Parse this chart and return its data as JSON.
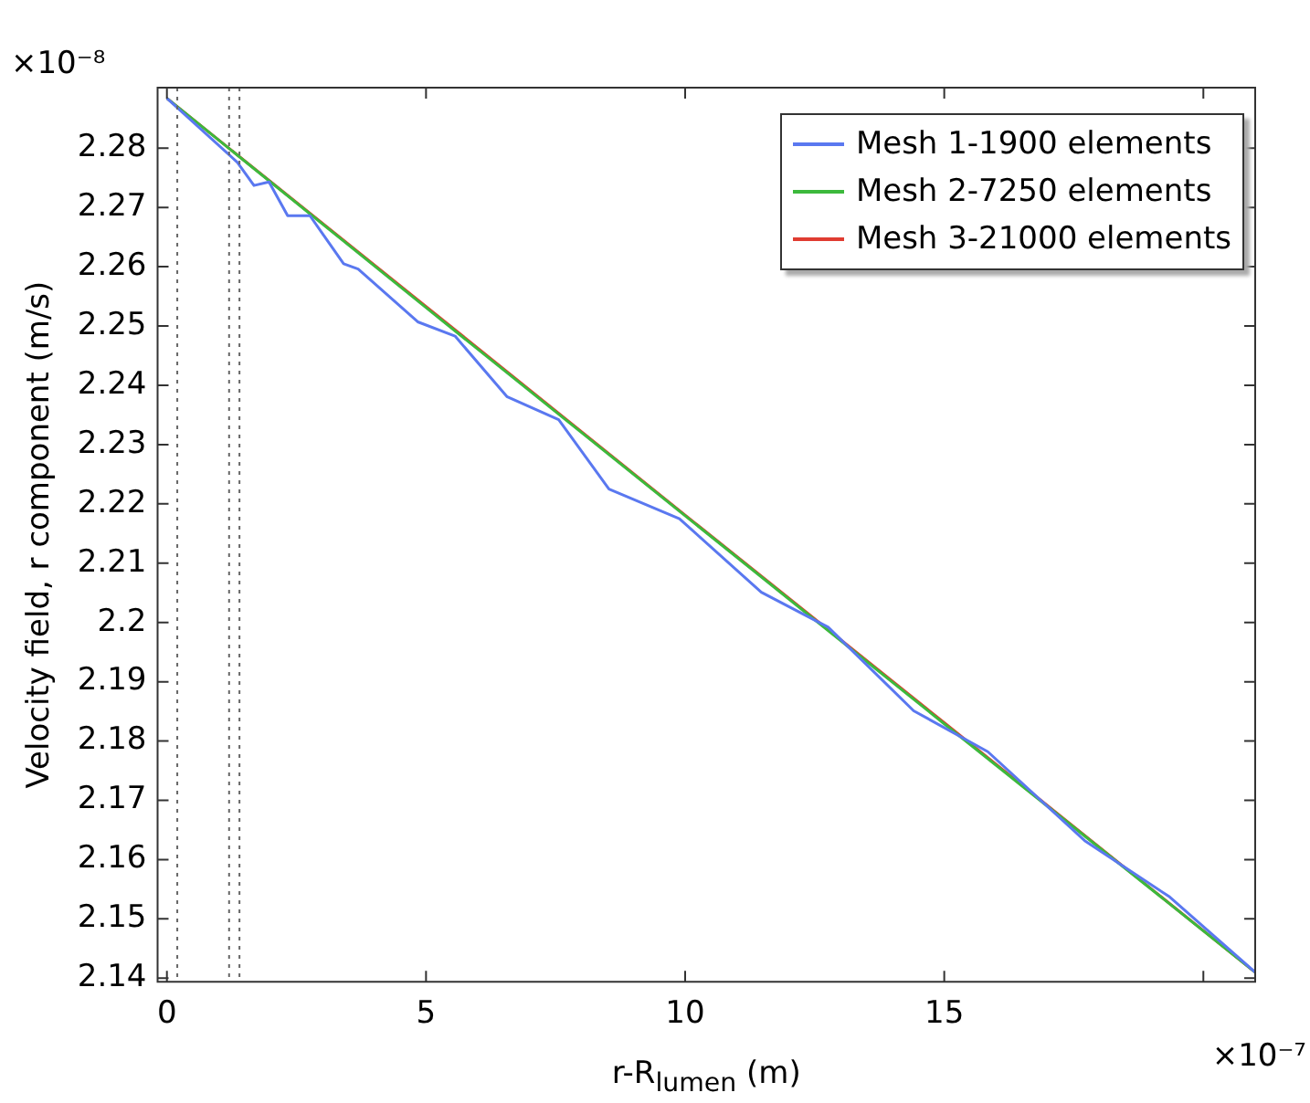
{
  "chart_data": {
    "type": "line",
    "xlabel": "r-R$_{lumen}$ (m)",
    "ylabel": "Velocity field, r component (m/s)",
    "annotations": [
      "×10⁻⁸",
      "×10⁻⁷"
    ],
    "xlim": [
      -0.18,
      21
    ],
    "xticks": [
      0,
      5,
      10,
      15,
      {
        "value": 20,
        "label": null
      }
    ],
    "ylim": [
      2.1394,
      2.2902
    ],
    "yticks": [
      2.14,
      2.15,
      2.16,
      2.17,
      2.18,
      2.19,
      2.2,
      2.21,
      2.22,
      2.23,
      2.24,
      2.25,
      2.26,
      2.27,
      2.28
    ],
    "grid": false,
    "legend": "top right",
    "marker": "none",
    "line_style": "solid",
    "ref_lines": [
      {
        "axis": "x",
        "value": 0.2,
        "color": "#666666",
        "line_style": "dotted"
      },
      {
        "axis": "x",
        "value": 1.2,
        "color": "#666666",
        "line_style": "dotted"
      },
      {
        "axis": "x",
        "value": 1.4,
        "color": "#666666",
        "line_style": "dotted"
      }
    ],
    "series": [
      {
        "name": "Mesh 1-1900 elements",
        "color": "#5a78f0",
        "x": [
          0,
          1.36,
          1.68,
          1.97,
          2.33,
          2.76,
          3.41,
          3.69,
          4.84,
          5.56,
          6.56,
          7.56,
          8.53,
          9.89,
          11.47,
          12.76,
          14.41,
          15.84,
          17.71,
          19.35,
          21
        ],
        "values": [
          2.2884,
          2.2776,
          2.2737,
          2.2743,
          2.2686,
          2.2686,
          2.2605,
          2.2596,
          2.2507,
          2.2483,
          2.2381,
          2.2342,
          2.2225,
          2.2175,
          2.2051,
          2.1992,
          2.1851,
          2.1782,
          2.1632,
          2.1537,
          2.141
        ]
      },
      {
        "name": "Mesh 2-7250 elements",
        "color": "#3cb93c",
        "x": [
          0,
          5,
          10,
          15,
          21
        ],
        "values": [
          2.2884,
          2.2531,
          2.218,
          2.1829,
          2.141
        ]
      },
      {
        "name": "Mesh 3-21000 elements",
        "color": "#e03c31",
        "x": [
          0,
          5,
          10,
          15,
          21
        ],
        "values": [
          2.2884,
          2.2533,
          2.2181,
          2.1831,
          2.141
        ]
      }
    ]
  }
}
